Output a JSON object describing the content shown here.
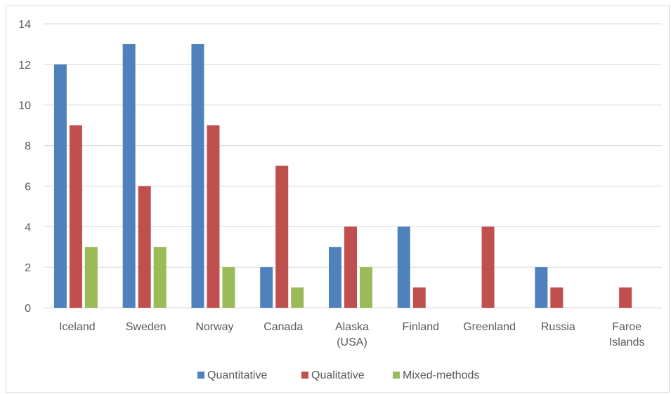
{
  "chart_data": {
    "type": "bar",
    "title": "",
    "xlabel": "",
    "ylabel": "",
    "ylim": [
      0,
      14
    ],
    "yticks": [
      0,
      2,
      4,
      6,
      8,
      10,
      12,
      14
    ],
    "grid": true,
    "legend_position": "bottom",
    "categories": [
      [
        "Iceland"
      ],
      [
        "Sweden"
      ],
      [
        "Norway"
      ],
      [
        "Canada"
      ],
      [
        "Alaska",
        "(USA)"
      ],
      [
        "Finland"
      ],
      [
        "Greenland"
      ],
      [
        "Russia"
      ],
      [
        "Faroe",
        "Islands"
      ]
    ],
    "series": [
      {
        "name": "Quantitative",
        "color": "#4f81bd",
        "values": [
          12,
          13,
          13,
          2,
          3,
          4,
          0,
          2,
          0
        ]
      },
      {
        "name": "Qualitative",
        "color": "#c0504d",
        "values": [
          9,
          6,
          9,
          7,
          4,
          1,
          4,
          1,
          1
        ]
      },
      {
        "name": "Mixed-methods",
        "color": "#9bbb59",
        "values": [
          3,
          3,
          2,
          1,
          2,
          0,
          0,
          0,
          0
        ]
      }
    ]
  }
}
